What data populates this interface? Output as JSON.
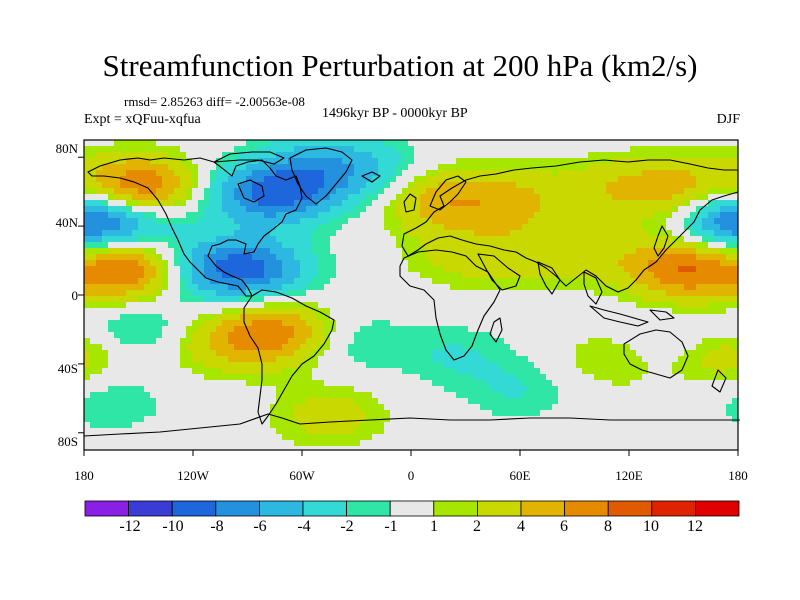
{
  "title": "Streamfunction Perturbation at 200 hPa (km2/s)",
  "stats_line": "rmsd= 2.85263 diff= -2.00563e-08",
  "experiment_line": "Expt = xQFuu-xqfua",
  "period_line": "1496kyr BP - 0000kyr BP",
  "season": "DJF",
  "y_tick_labels": [
    "80N",
    "40N",
    "0",
    "40S",
    "80S"
  ],
  "x_tick_labels": [
    "180",
    "120W",
    "60W",
    "0",
    "60E",
    "120E",
    "180"
  ],
  "colorbar": {
    "labels": [
      "-12",
      "-10",
      "-8",
      "-6",
      "-4",
      "-2",
      "-1",
      "1",
      "2",
      "4",
      "6",
      "8",
      "10",
      "12"
    ],
    "colors": [
      "#8a1fe6",
      "#3b3bd6",
      "#1e66dc",
      "#2491de",
      "#2cb8e0",
      "#33d9d4",
      "#30e6a6",
      "#e8e8e8",
      "#a6e600",
      "#c8d800",
      "#e0b400",
      "#e68a00",
      "#e05a00",
      "#e02200",
      "#e00000"
    ]
  },
  "map": {
    "lon_range": [
      -180,
      180
    ],
    "lat_range": [
      -90,
      90
    ],
    "field_blobs": [
      {
        "lon": -150,
        "lat": 62,
        "amp": 9
      },
      {
        "lon": -155,
        "lat": 15,
        "amp": 9
      },
      {
        "lon": -152,
        "lat": 42,
        "amp": -4
      },
      {
        "lon": -175,
        "lat": 42,
        "amp": -4
      },
      {
        "lon": -85,
        "lat": 58,
        "amp": -6
      },
      {
        "lon": -60,
        "lat": 62,
        "amp": -5
      },
      {
        "lon": -50,
        "lat": 80,
        "amp": -3
      },
      {
        "lon": -20,
        "lat": 72,
        "amp": -3
      },
      {
        "lon": -85,
        "lat": 15,
        "amp": -7
      },
      {
        "lon": -115,
        "lat": 15,
        "amp": -5
      },
      {
        "lon": -75,
        "lat": -22,
        "amp": 7
      },
      {
        "lon": -108,
        "lat": -28,
        "amp": 3
      },
      {
        "lon": -150,
        "lat": -20,
        "amp": -3
      },
      {
        "lon": -165,
        "lat": -62,
        "amp": -2
      },
      {
        "lon": -30,
        "lat": -28,
        "amp": -2
      },
      {
        "lon": 25,
        "lat": -35,
        "amp": -2
      },
      {
        "lon": 60,
        "lat": -55,
        "amp": -2
      },
      {
        "lon": 150,
        "lat": -28,
        "amp": -2
      },
      {
        "lon": -45,
        "lat": -70,
        "amp": 3
      },
      {
        "lon": 15,
        "lat": 55,
        "amp": 5
      },
      {
        "lon": 55,
        "lat": 55,
        "amp": 4
      },
      {
        "lon": 110,
        "lat": 62,
        "amp": 3
      },
      {
        "lon": 150,
        "lat": 62,
        "amp": 5
      },
      {
        "lon": 175,
        "lat": 44,
        "amp": -5
      },
      {
        "lon": 150,
        "lat": 15,
        "amp": 8
      },
      {
        "lon": 95,
        "lat": 25,
        "amp": 3
      },
      {
        "lon": 25,
        "lat": 22,
        "amp": 2
      },
      {
        "lon": 172,
        "lat": -35,
        "amp": 4
      },
      {
        "lon": 110,
        "lat": -38,
        "amp": 2
      },
      {
        "lon": 55,
        "lat": 25,
        "amp": 2
      }
    ]
  }
}
